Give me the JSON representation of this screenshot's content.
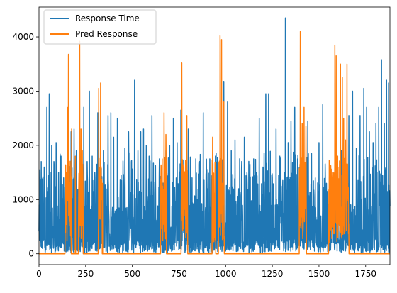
{
  "chart_data": {
    "type": "line",
    "xlim": [
      0,
      1880
    ],
    "ylim": [
      -200,
      4550
    ],
    "x_ticks": [
      0,
      250,
      500,
      750,
      1000,
      1250,
      1500,
      1750
    ],
    "y_ticks": [
      0,
      1000,
      2000,
      3000,
      4000
    ],
    "grid": false,
    "legend_position": "top-left",
    "colors": {
      "response": "#1f77b4",
      "pred": "#ff7f0e"
    },
    "series": [
      {
        "name": "Response Time",
        "color": "#1f77b4",
        "peaks": [
          [
            5,
            1550
          ],
          [
            12,
            1700
          ],
          [
            20,
            1300
          ],
          [
            28,
            1600
          ],
          [
            42,
            2700
          ],
          [
            55,
            2950
          ],
          [
            68,
            2000
          ],
          [
            80,
            1700
          ],
          [
            92,
            2050
          ],
          [
            105,
            1500
          ],
          [
            118,
            1800
          ],
          [
            132,
            1400
          ],
          [
            145,
            1200
          ],
          [
            160,
            1000
          ],
          [
            172,
            2250
          ],
          [
            188,
            2300
          ],
          [
            200,
            1900
          ],
          [
            225,
            2000
          ],
          [
            240,
            2700
          ],
          [
            258,
            1700
          ],
          [
            270,
            3000
          ],
          [
            285,
            1800
          ],
          [
            300,
            1400
          ],
          [
            315,
            2600
          ],
          [
            345,
            1900
          ],
          [
            370,
            2550
          ],
          [
            385,
            2600
          ],
          [
            400,
            2150
          ],
          [
            420,
            2500
          ],
          [
            440,
            1450
          ],
          [
            460,
            1950
          ],
          [
            480,
            2250
          ],
          [
            495,
            1700
          ],
          [
            512,
            3200
          ],
          [
            530,
            1900
          ],
          [
            545,
            2250
          ],
          [
            560,
            2300
          ],
          [
            575,
            2000
          ],
          [
            590,
            1800
          ],
          [
            605,
            2550
          ],
          [
            620,
            1100
          ],
          [
            645,
            1750
          ],
          [
            680,
            1900
          ],
          [
            700,
            2000
          ],
          [
            720,
            2500
          ],
          [
            740,
            2050
          ],
          [
            760,
            2650
          ],
          [
            800,
            2300
          ],
          [
            820,
            1400
          ],
          [
            840,
            1750
          ],
          [
            860,
            1650
          ],
          [
            880,
            2600
          ],
          [
            900,
            1200
          ],
          [
            915,
            1750
          ],
          [
            945,
            1800
          ],
          [
            990,
            3180
          ],
          [
            1010,
            2800
          ],
          [
            1030,
            1900
          ],
          [
            1050,
            2100
          ],
          [
            1070,
            1200
          ],
          [
            1085,
            1550
          ],
          [
            1100,
            2150
          ],
          [
            1115,
            1300
          ],
          [
            1130,
            1650
          ],
          [
            1150,
            1750
          ],
          [
            1165,
            1500
          ],
          [
            1180,
            2500
          ],
          [
            1200,
            1600
          ],
          [
            1215,
            2950
          ],
          [
            1230,
            2950
          ],
          [
            1250,
            1400
          ],
          [
            1270,
            2300
          ],
          [
            1290,
            1800
          ],
          [
            1305,
            1200
          ],
          [
            1320,
            4350
          ],
          [
            1335,
            2050
          ],
          [
            1350,
            2450
          ],
          [
            1370,
            2700
          ],
          [
            1385,
            1750
          ],
          [
            1395,
            1450
          ],
          [
            1440,
            2450
          ],
          [
            1460,
            1850
          ],
          [
            1480,
            1400
          ],
          [
            1500,
            2050
          ],
          [
            1520,
            2750
          ],
          [
            1540,
            1300
          ],
          [
            1600,
            1550
          ],
          [
            1620,
            1900
          ],
          [
            1640,
            2000
          ],
          [
            1660,
            2550
          ],
          [
            1680,
            3000
          ],
          [
            1700,
            1950
          ],
          [
            1720,
            2550
          ],
          [
            1740,
            3050
          ],
          [
            1755,
            2700
          ],
          [
            1770,
            2250
          ],
          [
            1790,
            2050
          ],
          [
            1805,
            2400
          ],
          [
            1820,
            2700
          ],
          [
            1835,
            3580
          ],
          [
            1850,
            2400
          ],
          [
            1862,
            3200
          ],
          [
            1872,
            3150
          ]
        ]
      },
      {
        "name": "Pred Response",
        "color": "#ff7f0e",
        "peaks": [
          [
            148,
            1000
          ],
          [
            152,
            2700
          ],
          [
            158,
            3680
          ],
          [
            165,
            1200
          ],
          [
            175,
            2300
          ],
          [
            195,
            1800
          ],
          [
            218,
            3920
          ],
          [
            225,
            2300
          ],
          [
            232,
            1900
          ],
          [
            320,
            3050
          ],
          [
            330,
            3150
          ],
          [
            340,
            1300
          ],
          [
            660,
            1750
          ],
          [
            670,
            2600
          ],
          [
            680,
            2200
          ],
          [
            765,
            3520
          ],
          [
            780,
            1200
          ],
          [
            792,
            2550
          ],
          [
            930,
            2150
          ],
          [
            945,
            1450
          ],
          [
            970,
            4020
          ],
          [
            978,
            3950
          ],
          [
            990,
            2800
          ],
          [
            1400,
            4100
          ],
          [
            1410,
            2400
          ],
          [
            1420,
            2700
          ],
          [
            1430,
            2350
          ],
          [
            1560,
            1450
          ],
          [
            1585,
            3850
          ],
          [
            1592,
            3650
          ],
          [
            1600,
            1800
          ],
          [
            1615,
            3500
          ],
          [
            1625,
            3250
          ],
          [
            1632,
            2500
          ],
          [
            1642,
            2100
          ],
          [
            1650,
            3500
          ]
        ],
        "blocks": [
          [
            140,
            172
          ],
          [
            212,
            236
          ],
          [
            318,
            338
          ],
          [
            652,
            682
          ],
          [
            762,
            796
          ],
          [
            928,
            946
          ],
          [
            962,
            992
          ],
          [
            1395,
            1432
          ],
          [
            1552,
            1660
          ]
        ]
      }
    ]
  }
}
